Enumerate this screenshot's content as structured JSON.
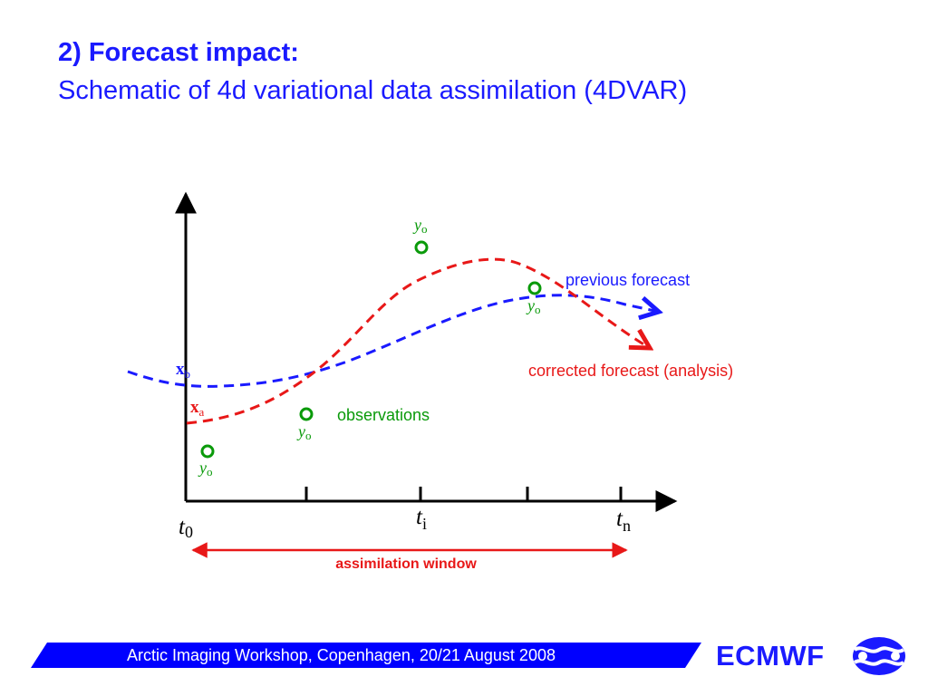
{
  "slide": {
    "title_line1": "2) Forecast impact:",
    "title_line2": "Schematic of 4d variational data assimilation (4DVAR)"
  },
  "diagram": {
    "labels": {
      "previous_forecast": "previous forecast",
      "corrected_forecast": "corrected forecast (analysis)",
      "observations": "observations",
      "assimilation_window": "assimilation window"
    },
    "state_labels": {
      "background": {
        "base": "x",
        "sub": "b"
      },
      "analysis": {
        "base": "x",
        "sub": "a"
      }
    },
    "observation_symbol": {
      "base": "y",
      "sub": "o"
    },
    "time_labels": {
      "start": {
        "base": "t",
        "sub": "0"
      },
      "intermediate": {
        "base": "t",
        "sub": "i"
      },
      "end": {
        "base": "t",
        "sub": "n"
      }
    },
    "colors": {
      "previous_forecast": "#1a1aff",
      "corrected_forecast": "#e81818",
      "observations": "#0a9a0a",
      "axis": "#000000",
      "assimilation_window": "#e81818"
    }
  },
  "footer": {
    "text": "Arctic Imaging Workshop, Copenhagen, 20/21 August 2008",
    "bar_color": "#0000ff"
  },
  "logo": {
    "text": "ECMWF",
    "icon": "ecmwf-wave-logo-icon"
  }
}
